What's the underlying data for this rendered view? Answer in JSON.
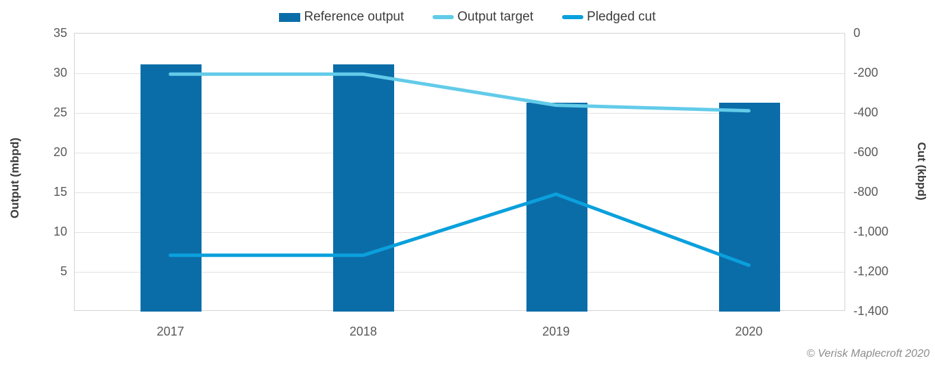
{
  "legend": {
    "items": [
      {
        "label": "Reference output",
        "swatch": "bar"
      },
      {
        "label": "Output target",
        "swatch": "line"
      },
      {
        "label": "Pledged cut",
        "swatch": "line"
      }
    ]
  },
  "axes": {
    "left_title": "Output (mbpd)",
    "right_title": "Cut (kbpd)"
  },
  "footer": {
    "copyright": "© Verisk Maplecroft 2020"
  },
  "colors": {
    "reference_output": "#0b6da8",
    "output_target": "#62cbe9",
    "pledged_cut": "#0aa0dc",
    "gridline": "#e2e2e2",
    "plot_border": "#d4d4d4",
    "tick_text": "#595959",
    "legend_text": "#3c3c3c"
  },
  "chart_data": {
    "type": "bar",
    "subtype": "combo-bar-line-dual-axis",
    "categories": [
      "2017",
      "2018",
      "2019",
      "2020"
    ],
    "series": [
      {
        "name": "Reference output",
        "type": "bar",
        "axis": "left",
        "color": "#0b6da8",
        "values": [
          31.1,
          31.1,
          26.3,
          26.3
        ]
      },
      {
        "name": "Output target",
        "type": "line",
        "axis": "left",
        "color": "#62cbe9",
        "values": [
          29.8,
          29.8,
          25.9,
          25.2
        ]
      },
      {
        "name": "Pledged cut",
        "type": "line",
        "axis": "right",
        "color": "#0aa0dc",
        "values": [
          -1120,
          -1120,
          -812,
          -1170
        ]
      }
    ],
    "left_axis": {
      "label": "Output (mbpd)",
      "min": 0,
      "max": 35,
      "tick_labels": [
        "35",
        "30",
        "25",
        "20",
        "15",
        "10",
        "5"
      ]
    },
    "right_axis": {
      "label": "Cut (kbpd)",
      "min": -1400,
      "max": 0,
      "tick_labels": [
        "0",
        "-200",
        "-400",
        "-600",
        "-800",
        "-1,000",
        "-1,200",
        "-1,400"
      ]
    },
    "grid": "horizontal",
    "legend_position": "top",
    "annotations": [
      "© Verisk Maplecroft 2020"
    ]
  }
}
